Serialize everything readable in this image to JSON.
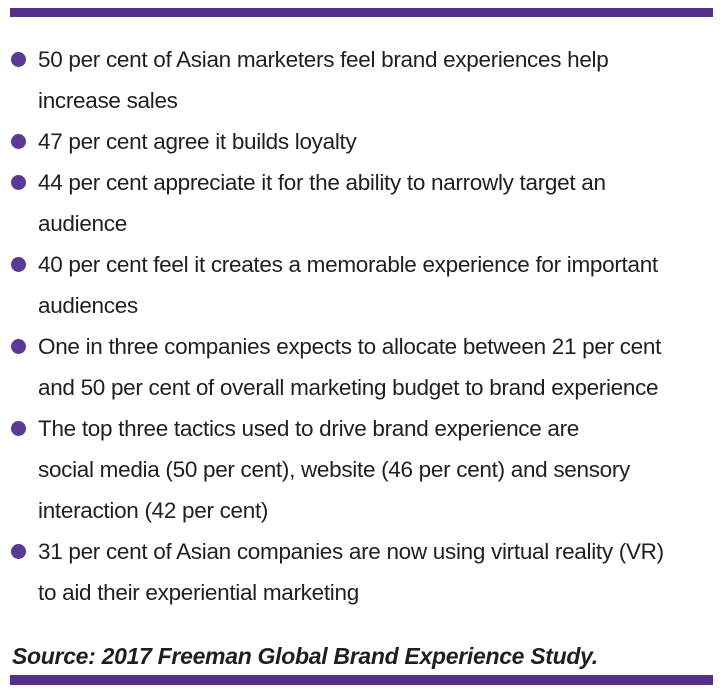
{
  "page": {
    "background_color": "#ffffff",
    "text_color": "#221e1f"
  },
  "rules": {
    "color": "#553089"
  },
  "fact_list": {
    "bullet_color": "#5b3a96",
    "items": [
      {
        "lines": [
          "50 per cent of Asian marketers feel brand experiences help",
          "increase sales"
        ]
      },
      {
        "lines": [
          "47 per cent agree it builds loyalty"
        ]
      },
      {
        "lines": [
          "44 per cent appreciate it for the ability to narrowly target an",
          "audience"
        ]
      },
      {
        "lines": [
          "40 per cent feel it creates a memorable experience for important",
          "audiences"
        ]
      },
      {
        "lines": [
          "One in three companies expects to allocate between 21 per cent",
          "and 50 per cent of overall marketing budget to brand experience"
        ]
      },
      {
        "lines": [
          "The top three tactics used to drive brand experience are",
          "social media (50 per cent), website (46 per cent) and sensory",
          "interaction (42 per cent)"
        ]
      },
      {
        "lines": [
          "31 per cent of Asian companies are now using virtual reality (VR)",
          "to aid their experiential marketing"
        ]
      }
    ]
  },
  "source": {
    "text": "Source: 2017 Freeman Global Brand Experience Study."
  }
}
